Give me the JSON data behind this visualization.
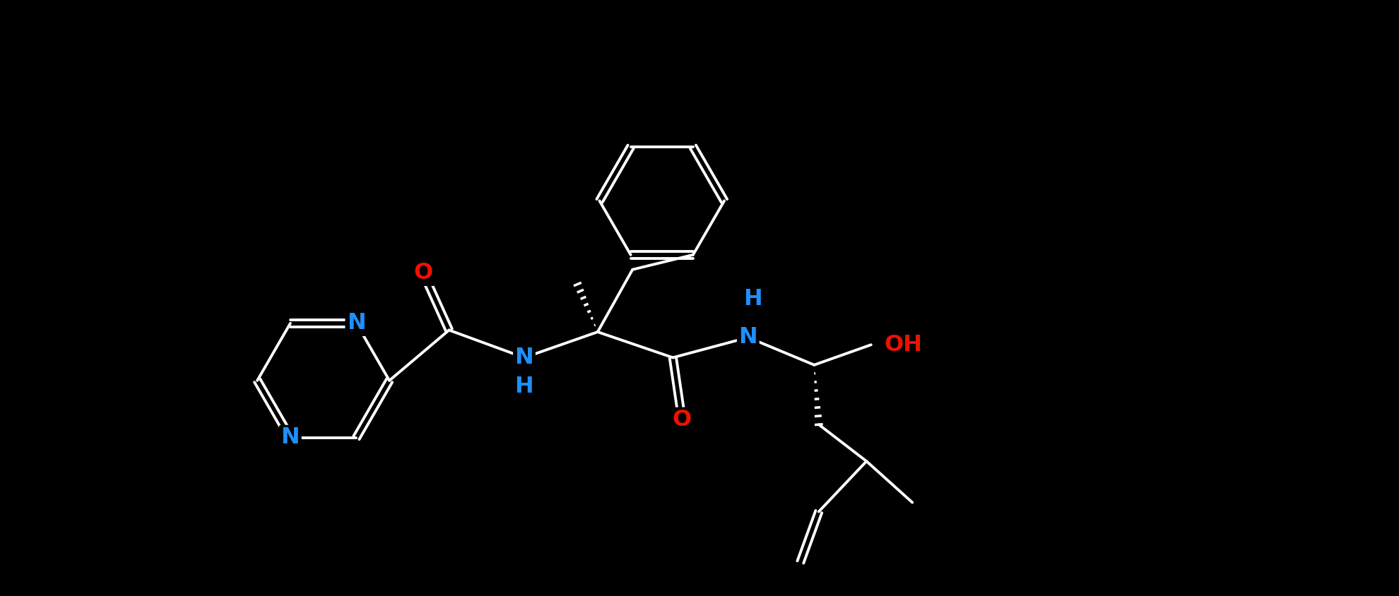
{
  "bg": "#000000",
  "bond": "#ffffff",
  "N_col": "#1e8fff",
  "O_col": "#ee1100",
  "lw": 2.8,
  "dbo": 0.036,
  "fs": 23,
  "xlim": [
    0.0,
    12.5
  ],
  "ylim": [
    0.5,
    7.0
  ]
}
